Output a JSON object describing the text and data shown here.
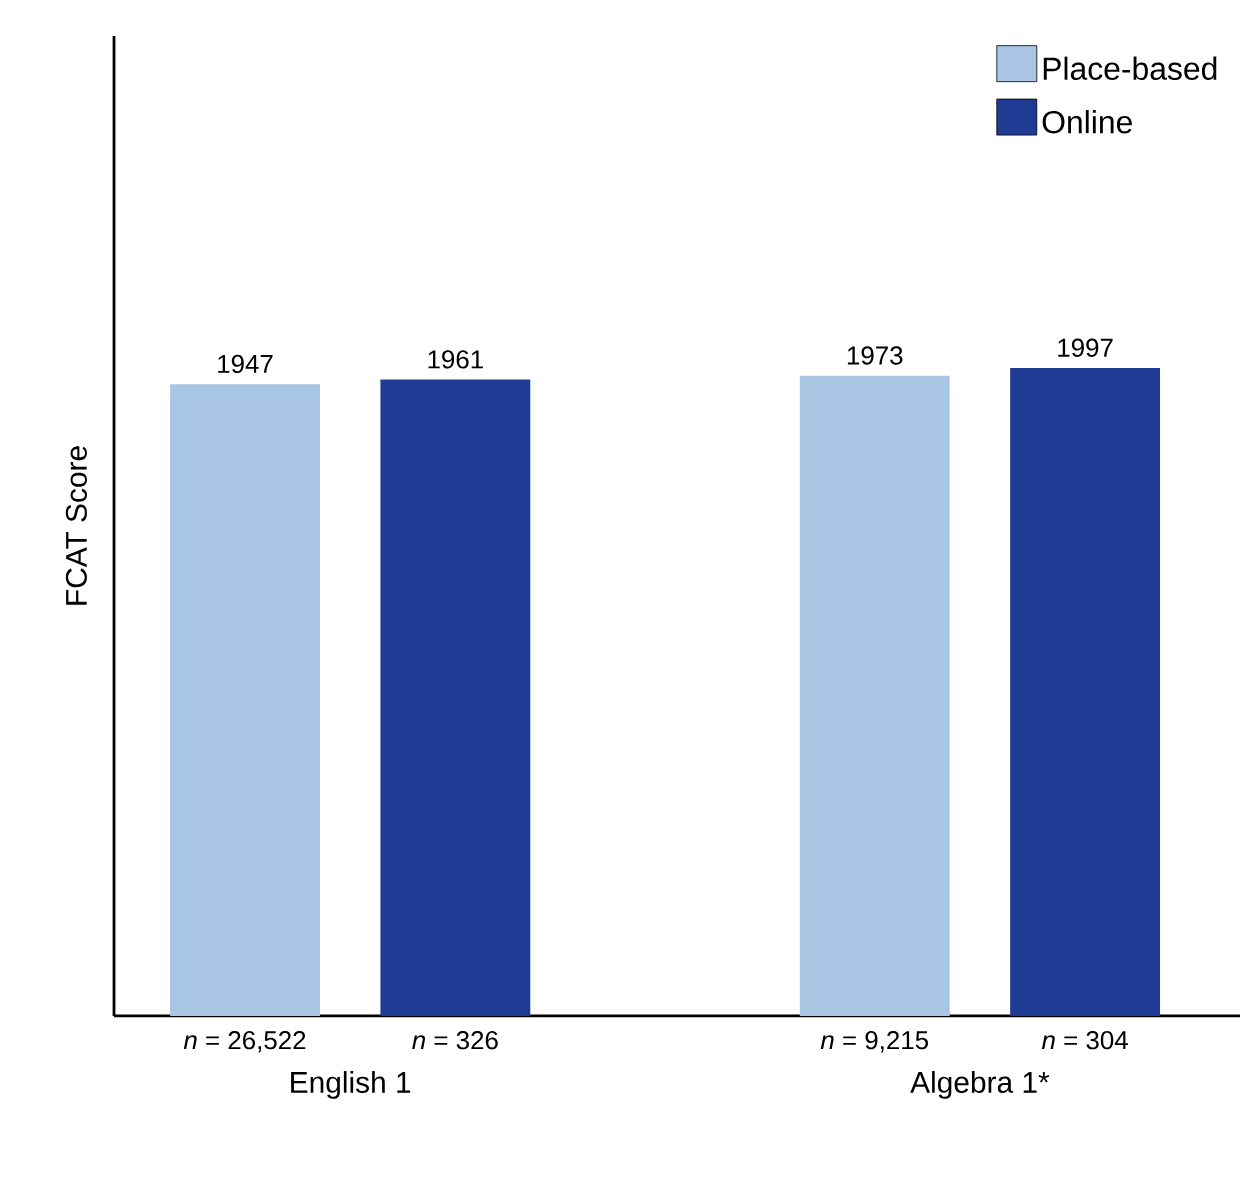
{
  "chart_data": {
    "type": "bar",
    "ylabel": "FCAT Score",
    "categories": [
      "English 1",
      "Algebra 1*"
    ],
    "series": [
      {
        "name": "Place-based",
        "color": "#a8c5e3",
        "values": [
          1947,
          1973
        ]
      },
      {
        "name": "Online",
        "color": "#1f3b94",
        "values": [
          1961,
          1997
        ]
      }
    ],
    "ylim": [
      0,
      3020
    ],
    "tick_labels": "x",
    "data_labels": true,
    "legend": "top right",
    "grid": false,
    "annotations": [
      "*n* = 26,522",
      "*n* = 326",
      "*n* = 9,215",
      "*n* = 304"
    ]
  }
}
